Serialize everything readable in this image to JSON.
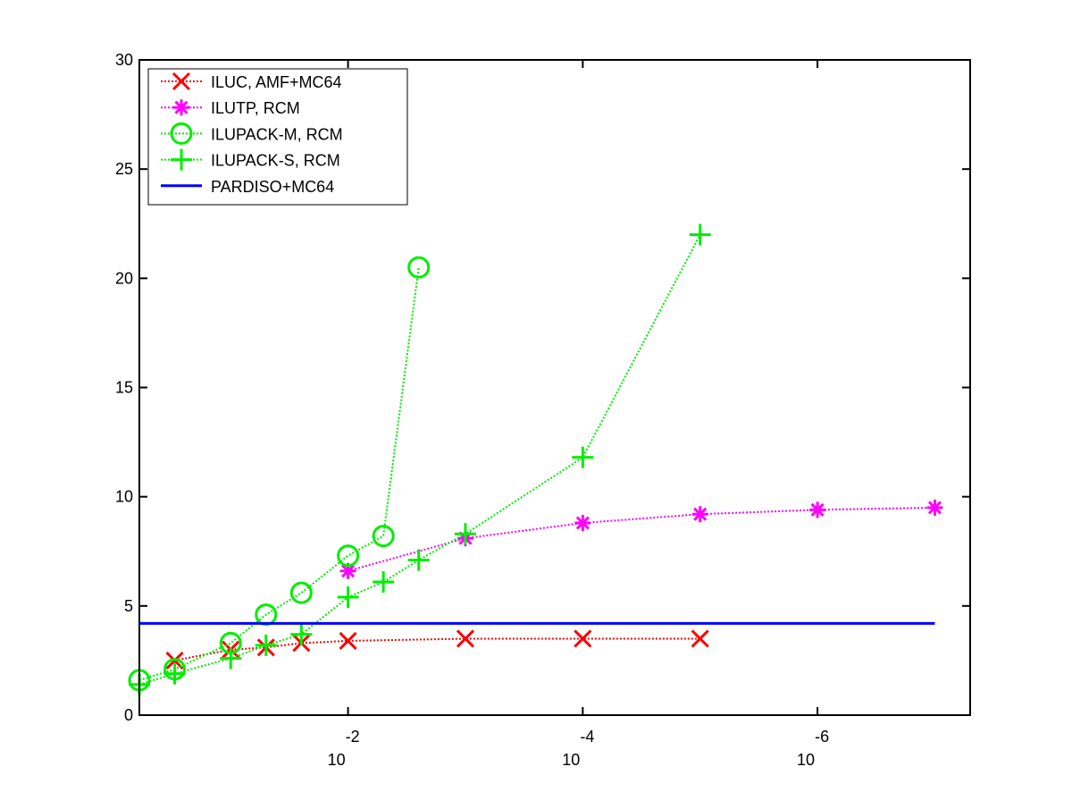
{
  "chart_data": {
    "type": "line",
    "title": "",
    "xlabel": "",
    "ylabel": "",
    "xscale": "log",
    "xlim": [
      0.6,
      5e-08
    ],
    "ylim": [
      0,
      30
    ],
    "grid": false,
    "legend_position": "top-left",
    "y_ticks": [
      "0",
      "5",
      "10",
      "15",
      "20",
      "25",
      "30"
    ],
    "x_ticks": [
      {
        "value": 0.01,
        "base": "10",
        "exponent": "-2"
      },
      {
        "value": 0.0001,
        "base": "10",
        "exponent": "-4"
      },
      {
        "value": 1e-06,
        "base": "10",
        "exponent": "-6"
      }
    ],
    "series": [
      {
        "name": "ILUC, AMF+MC64",
        "color": "#ff0000",
        "marker": "x",
        "line": "dotted",
        "points": [
          [
            0.3,
            2.5
          ],
          [
            0.1,
            3.0
          ],
          [
            0.05,
            3.1
          ],
          [
            0.025,
            3.3
          ],
          [
            0.01,
            3.4
          ],
          [
            0.001,
            3.5
          ],
          [
            0.0001,
            3.5
          ],
          [
            1e-05,
            3.5
          ]
        ]
      },
      {
        "name": "ILUTP, RCM",
        "color": "#ff00ff",
        "marker": "asterisk",
        "line": "dotted",
        "points": [
          [
            0.01,
            6.6
          ],
          [
            0.001,
            8.1
          ],
          [
            0.0001,
            8.8
          ],
          [
            1e-05,
            9.2
          ],
          [
            1e-06,
            9.4
          ],
          [
            1e-07,
            9.5
          ]
        ]
      },
      {
        "name": "ILUPACK-M, RCM",
        "color": "#00ee00",
        "marker": "circle",
        "line": "dotted",
        "points": [
          [
            0.6,
            1.6
          ],
          [
            0.3,
            2.1
          ],
          [
            0.1,
            3.3
          ],
          [
            0.05,
            4.6
          ],
          [
            0.025,
            5.6
          ],
          [
            0.01,
            7.3
          ],
          [
            0.005,
            8.2
          ],
          [
            0.0025,
            20.5
          ]
        ]
      },
      {
        "name": "ILUPACK-S, RCM",
        "color": "#00ee00",
        "marker": "plus",
        "line": "dotted",
        "points": [
          [
            0.6,
            1.4
          ],
          [
            0.3,
            1.9
          ],
          [
            0.1,
            2.6
          ],
          [
            0.05,
            3.2
          ],
          [
            0.025,
            3.7
          ],
          [
            0.01,
            5.4
          ],
          [
            0.005,
            6.1
          ],
          [
            0.0025,
            7.1
          ],
          [
            0.001,
            8.3
          ],
          [
            0.0001,
            11.8
          ],
          [
            1e-05,
            22.0
          ]
        ]
      },
      {
        "name": "PARDISO+MC64",
        "color": "#0000ff",
        "marker": "none",
        "line": "solid",
        "points": [
          [
            0.6,
            4.2
          ],
          [
            1e-07,
            4.2
          ]
        ]
      }
    ]
  }
}
